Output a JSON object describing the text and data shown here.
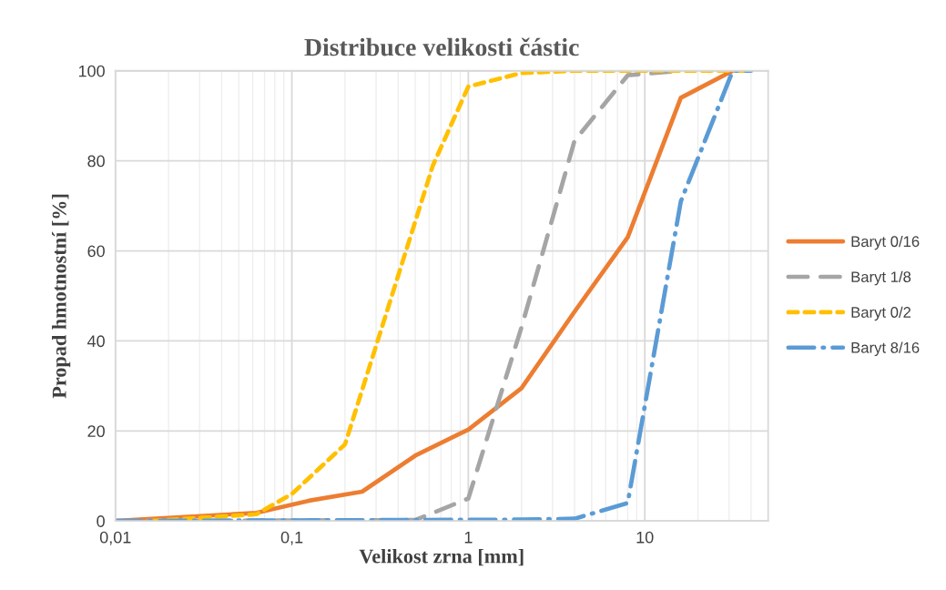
{
  "chart_data": {
    "type": "line",
    "title": "Distribuce velikosti částic",
    "xlabel": "Velikost zrna [mm]",
    "ylabel": "Propad hmotnostní [%]",
    "log": "x",
    "xlim": [
      0.01,
      50
    ],
    "xticks": [
      {
        "value": 0.01,
        "label": "0,01"
      },
      {
        "value": 0.1,
        "label": "0,1"
      },
      1,
      10
    ],
    "ylim": [
      0,
      100
    ],
    "yticks": [
      0,
      20,
      40,
      60,
      80,
      100
    ],
    "grid": true,
    "legend": "right",
    "marker": "none",
    "series": [
      {
        "name": "Baryt 0/16",
        "color": "#ed7d31",
        "line_style": "solid",
        "x": [
          0.01,
          0.063,
          0.125,
          0.25,
          0.5,
          1,
          2,
          4,
          8,
          16,
          31.5
        ],
        "values": [
          0,
          1.8,
          4.5,
          6.5,
          14.5,
          20.3,
          29.5,
          46.5,
          63,
          94,
          100
        ]
      },
      {
        "name": "Baryt 1/8",
        "color": "#a5a5a5",
        "line_style": "longdash",
        "x": [
          0.01,
          0.5,
          1,
          2,
          4,
          8,
          16
        ],
        "values": [
          0,
          0.2,
          5,
          43,
          84.5,
          99,
          100
        ]
      },
      {
        "name": "Baryt 0/2",
        "color": "#ffc000",
        "line_style": "dashed",
        "x": [
          0.016,
          0.063,
          0.1,
          0.2,
          0.63,
          1,
          2,
          4,
          8,
          16,
          40
        ],
        "values": [
          0,
          1.5,
          6,
          17,
          79,
          96.5,
          99.5,
          100,
          100,
          100,
          100
        ]
      },
      {
        "name": "Baryt 8/16",
        "color": "#5b9bd5",
        "line_style": "dashdot",
        "x": [
          0.01,
          2,
          4,
          8,
          16,
          31.5,
          40
        ],
        "values": [
          0,
          0.3,
          0.5,
          4,
          71,
          100,
          100
        ]
      }
    ]
  }
}
